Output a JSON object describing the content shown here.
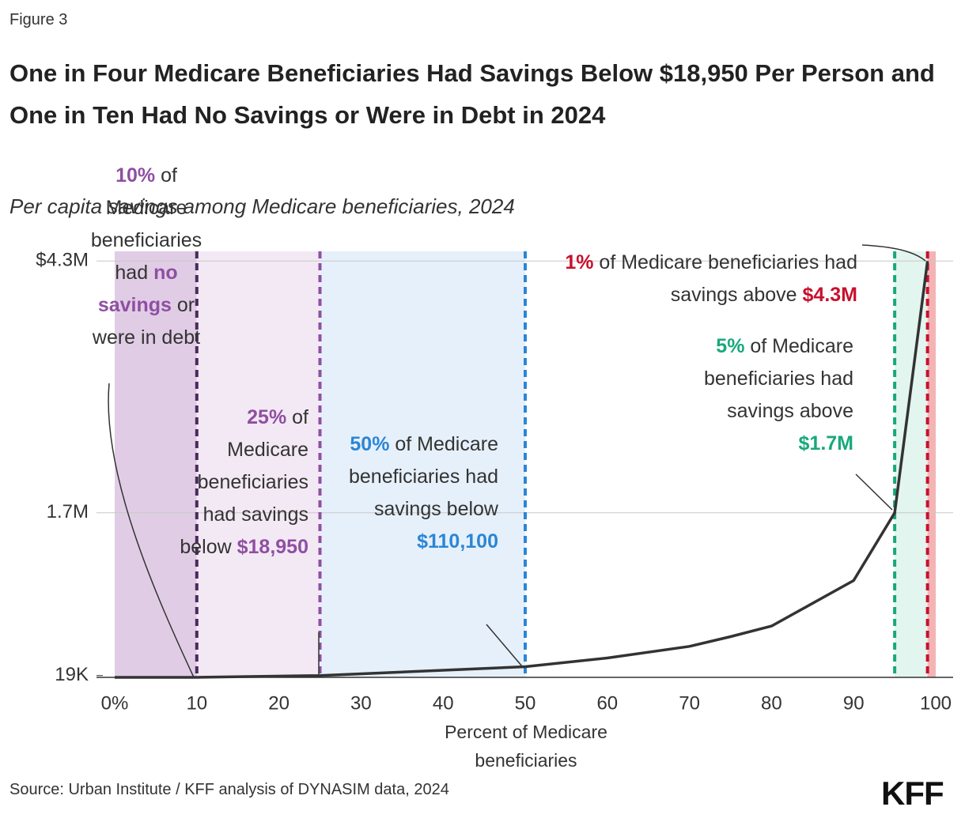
{
  "figure_label": "Figure 3",
  "source": "Source: Urban Institute / KFF analysis of DYNASIM data, 2024",
  "logo": "KFF",
  "chart_data": {
    "type": "line",
    "title": "One in Four Medicare Beneficiaries Had Savings Below $18,950 Per Person and One in Ten Had No Savings or Were in Debt in 2024",
    "subtitle": "Per capita savings among Medicare beneficiaries, 2024",
    "x_label": "Percent of Medicare beneficiaries",
    "x": [
      0,
      10,
      25,
      50,
      60,
      70,
      75,
      80,
      90,
      95,
      99
    ],
    "values": [
      0,
      0,
      18950,
      110100,
      200000,
      320000,
      420000,
      530000,
      1000000,
      1700000,
      4300000
    ],
    "color": "#333333",
    "xlim": [
      0,
      100
    ],
    "xticks": [
      {
        "value": 0,
        "label": "0%"
      },
      10,
      20,
      30,
      40,
      50,
      60,
      70,
      80,
      90,
      100
    ],
    "ylim": [
      0,
      4400000
    ],
    "yticks": [
      {
        "value": 18950,
        "label": "19K"
      },
      {
        "value": 1700000,
        "label": "1.7M"
      },
      {
        "value": 4300000,
        "label": "$4.3M"
      }
    ],
    "grid": true,
    "bands": [
      {
        "from": 0,
        "to": 10,
        "color": "#e0cde5"
      },
      {
        "from": 10,
        "to": 25,
        "color": "#f3e9f4"
      },
      {
        "from": 25,
        "to": 50,
        "color": "#e6f0fa"
      },
      {
        "from": 95,
        "to": 99,
        "color": "#e2f5ee"
      },
      {
        "from": 99,
        "to": 100,
        "color": "#f4b4b6"
      }
    ],
    "reference_lines": [
      {
        "x": 10,
        "color": "#4b2a5c"
      },
      {
        "x": 25,
        "color": "#8f4fa3"
      },
      {
        "x": 50,
        "color": "#2a86d6"
      },
      {
        "x": 95,
        "color": "#17a97c"
      },
      {
        "x": 99,
        "color": "#c8102e"
      }
    ],
    "annotations": [
      {
        "parts": [
          {
            "text": "10%",
            "color": "#8f4fa3"
          },
          {
            "text": " of Medicare beneficiaries had "
          },
          {
            "text": "no savings",
            "color": "#8f4fa3"
          },
          {
            "text": " or were in debt"
          }
        ]
      },
      {
        "parts": [
          {
            "text": "25%",
            "color": "#8f4fa3"
          },
          {
            "text": " of Medicare beneficiaries had savings below "
          },
          {
            "text": "$18,950",
            "color": "#8f4fa3"
          }
        ]
      },
      {
        "parts": [
          {
            "text": "50%",
            "color": "#2a86d6"
          },
          {
            "text": " of Medicare beneficiaries had savings below "
          },
          {
            "text": "$110,100",
            "color": "#2a86d6"
          }
        ]
      },
      {
        "parts": [
          {
            "text": "1%",
            "color": "#c8102e"
          },
          {
            "text": " of Medicare beneficiaries had savings above "
          },
          {
            "text": "$4.3M",
            "color": "#c8102e"
          }
        ]
      },
      {
        "parts": [
          {
            "text": "5%",
            "color": "#17a97c"
          },
          {
            "text": " of Medicare beneficiaries had savings above "
          },
          {
            "text": "$1.7M",
            "color": "#17a97c"
          }
        ]
      }
    ]
  }
}
